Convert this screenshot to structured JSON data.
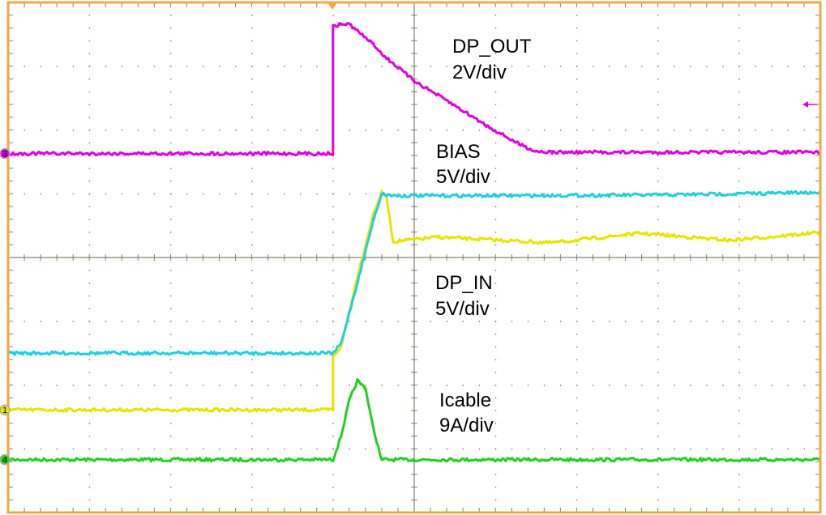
{
  "chart_data": {
    "type": "line",
    "grid": true,
    "xlim": [
      0,
      10
    ],
    "ylim": [
      0,
      8
    ],
    "colors": {
      "border": "#f5a742",
      "grid": "#8a8170",
      "trigger": "#f5a742"
    },
    "series": [
      {
        "name": "DP_OUT",
        "scale": "2V/div",
        "color": "#e000e0",
        "marker": "3",
        "x": [
          0,
          4.0,
          4.0,
          4.1,
          4.2,
          4.5,
          4.64,
          5.0,
          5.49,
          5.89,
          6.29,
          6.49,
          6.7,
          10
        ],
        "y": [
          5.63,
          5.63,
          7.62,
          7.66,
          7.66,
          7.34,
          7.15,
          6.77,
          6.39,
          6.07,
          5.78,
          5.67,
          5.65,
          5.65
        ]
      },
      {
        "name": "BIAS",
        "scale": "5V/div",
        "color": "#20d0e0",
        "marker": "",
        "x": [
          0,
          4.0,
          4.1,
          4.3,
          4.5,
          4.6,
          4.66,
          4.8,
          6.0,
          8.0,
          10
        ],
        "y": [
          2.5,
          2.5,
          2.65,
          3.6,
          4.6,
          5.0,
          4.98,
          4.97,
          4.97,
          4.98,
          5.02
        ]
      },
      {
        "name": "DP_IN",
        "scale": "5V/div",
        "color": "#e6e600",
        "marker": "1",
        "x": [
          0,
          4.0,
          4.0,
          4.1,
          4.3,
          4.5,
          4.6,
          4.66,
          4.74,
          5.29,
          6.69,
          7.78,
          8.88,
          10
        ],
        "y": [
          1.61,
          1.61,
          2.45,
          2.6,
          3.7,
          4.7,
          5.02,
          4.95,
          4.25,
          4.32,
          4.23,
          4.38,
          4.27,
          4.39
        ]
      },
      {
        "name": "Icable",
        "scale": "9A/div",
        "color": "#20d020",
        "marker": "4",
        "x": [
          0,
          4.0,
          4.1,
          4.2,
          4.3,
          4.4,
          4.5,
          4.6,
          4.61,
          10
        ],
        "y": [
          0.83,
          0.83,
          1.2,
          1.75,
          2.07,
          1.95,
          1.3,
          0.83,
          0.83,
          0.83
        ]
      }
    ],
    "trigger_position_div": 4.0,
    "trigger_level_marker_div": 6.4
  }
}
